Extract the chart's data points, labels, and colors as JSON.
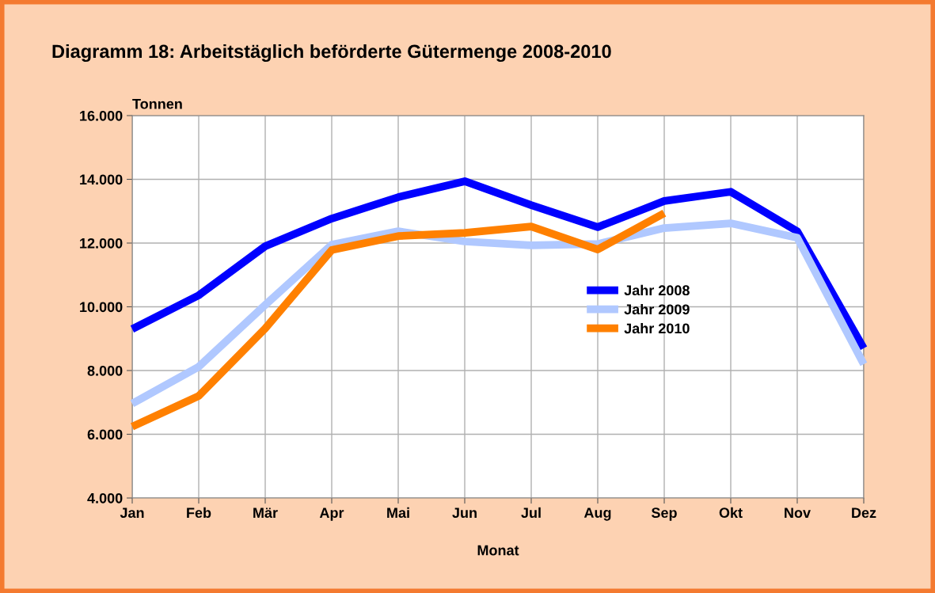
{
  "chart_data": {
    "type": "line",
    "title": "Diagramm 18: Arbeitstäglich beförderte Gütermenge 2008-2010",
    "ylabel": "Tonnen",
    "xlabel": "Monat",
    "categories": [
      "Jan",
      "Feb",
      "Mär",
      "Apr",
      "Mai",
      "Jun",
      "Jul",
      "Aug",
      "Sep",
      "Okt",
      "Nov",
      "Dez"
    ],
    "series": [
      {
        "name": "Jahr 2008",
        "color": "#0000ff",
        "values": [
          9300,
          10360,
          11900,
          12770,
          13440,
          13940,
          13190,
          12500,
          13320,
          13610,
          12370,
          8700
        ]
      },
      {
        "name": "Jahr 2009",
        "color": "#b0c8ff",
        "values": [
          6960,
          8120,
          10060,
          11950,
          12370,
          12050,
          11930,
          11970,
          12470,
          12620,
          12170,
          8200
        ]
      },
      {
        "name": "Jahr 2010",
        "color": "#ff8000",
        "values": [
          6240,
          7200,
          9320,
          11780,
          12220,
          12320,
          12520,
          11800,
          12940,
          null,
          null,
          null
        ]
      }
    ],
    "ylim": [
      4000,
      16000
    ],
    "yticks": [
      {
        "value": 4000,
        "label": "4.000"
      },
      {
        "value": 6000,
        "label": "6.000"
      },
      {
        "value": 8000,
        "label": "8.000"
      },
      {
        "value": 10000,
        "label": "10.000"
      },
      {
        "value": 12000,
        "label": "12.000"
      },
      {
        "value": 14000,
        "label": "14.000"
      },
      {
        "value": 16000,
        "label": "16.000"
      }
    ],
    "grid": true,
    "legend": "center right",
    "marker": "none",
    "line_style": "solid"
  }
}
